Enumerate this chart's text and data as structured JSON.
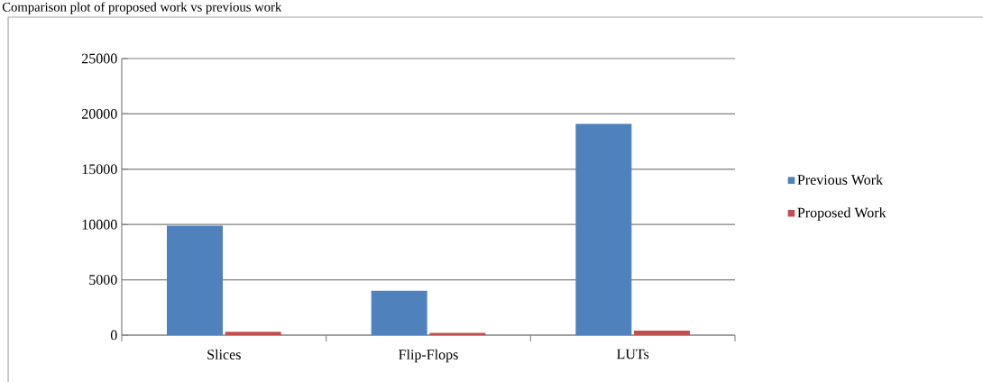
{
  "chart_data": {
    "type": "bar",
    "title": "Comparison plot of proposed work vs previous work",
    "categories": [
      "Slices",
      "Flip-Flops",
      "LUTs"
    ],
    "series": [
      {
        "name": "Previous Work",
        "color": "#4f81bd",
        "values": [
          9900,
          4000,
          19100
        ]
      },
      {
        "name": "Proposed Work",
        "color": "#c0504d",
        "values": [
          300,
          200,
          400
        ]
      }
    ],
    "ylim": [
      0,
      25000
    ],
    "yticks": [
      0,
      5000,
      10000,
      15000,
      20000,
      25000
    ],
    "grid": "y",
    "legend": "right"
  }
}
